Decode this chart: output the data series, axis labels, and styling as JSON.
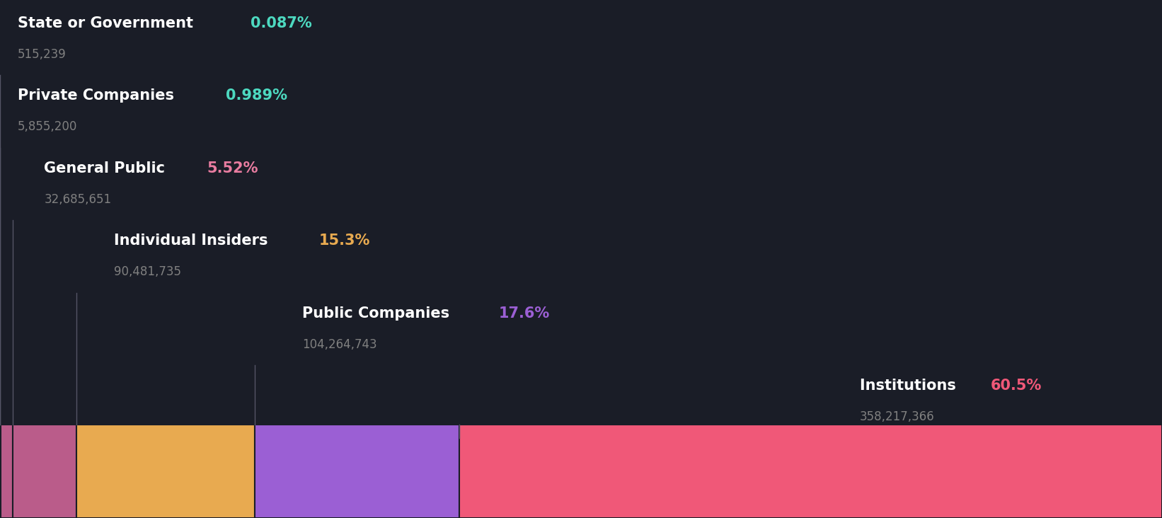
{
  "background_color": "#1a1d27",
  "segments": [
    {
      "label": "State or Government",
      "pct": "0.087%",
      "value": "515,239",
      "pct_float": 0.087,
      "bar_color": "#4dd9c0",
      "pct_color": "#4dd9c0",
      "value_color": "#808080"
    },
    {
      "label": "Private Companies",
      "pct": "0.989%",
      "value": "5,855,200",
      "pct_float": 0.989,
      "bar_color": "#ba5c8a",
      "pct_color": "#4dd9c0",
      "value_color": "#808080"
    },
    {
      "label": "General Public",
      "pct": "5.52%",
      "value": "32,685,651",
      "pct_float": 5.52,
      "bar_color": "#ba5c8a",
      "pct_color": "#e87ca0",
      "value_color": "#808080"
    },
    {
      "label": "Individual Insiders",
      "pct": "15.3%",
      "value": "90,481,735",
      "pct_float": 15.3,
      "bar_color": "#e8aa50",
      "pct_color": "#e8aa50",
      "value_color": "#808080"
    },
    {
      "label": "Public Companies",
      "pct": "17.6%",
      "value": "104,264,743",
      "pct_float": 17.6,
      "bar_color": "#9b5fd4",
      "pct_color": "#9b5fd4",
      "value_color": "#808080"
    },
    {
      "label": "Institutions",
      "pct": "60.5%",
      "value": "358,217,366",
      "pct_float": 60.5,
      "bar_color": "#f05878",
      "pct_color": "#f05878",
      "value_color": "#808080"
    }
  ],
  "label_fontsize": 15,
  "value_fontsize": 12,
  "line_color": "#555566"
}
